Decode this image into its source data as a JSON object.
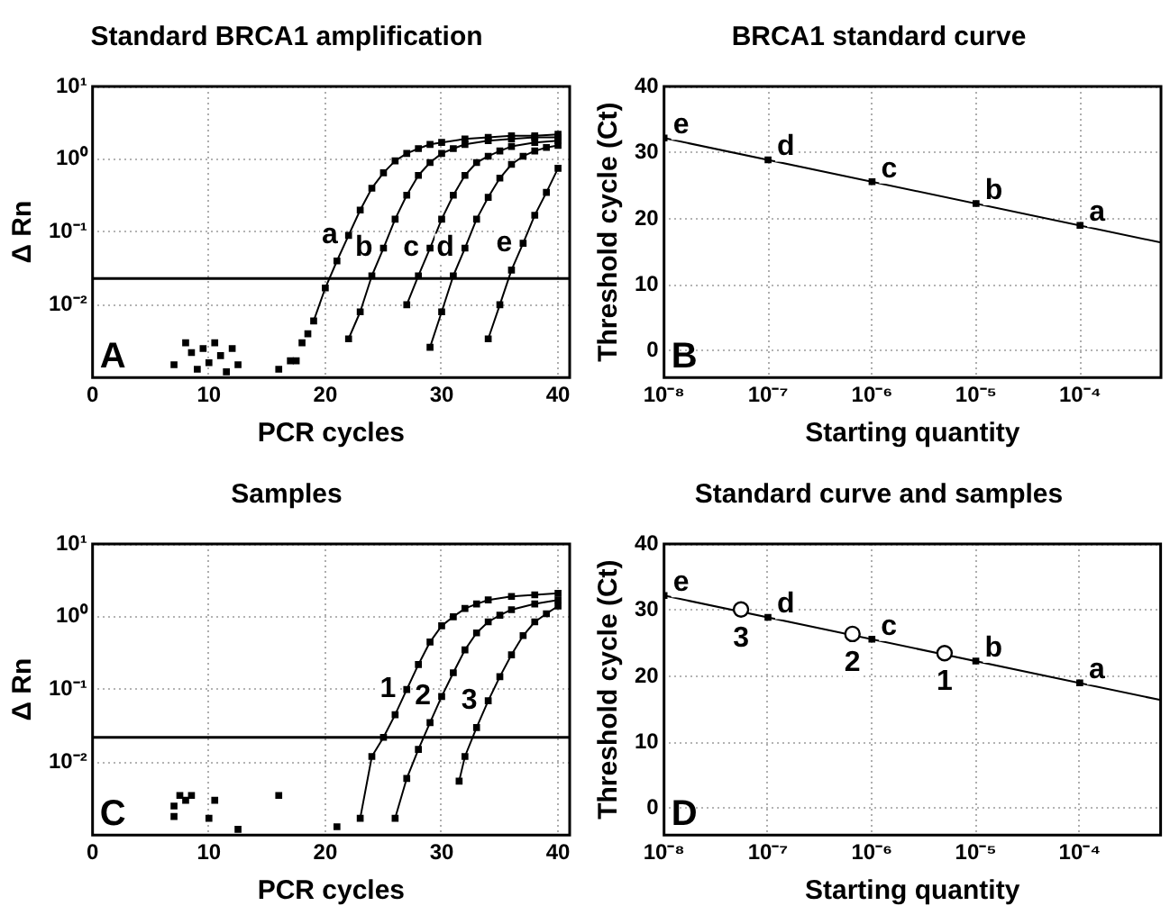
{
  "chart_data": [
    {
      "type": "line",
      "title": "Standard BRCA1 amplification",
      "xlabel": "PCR cycles",
      "ylabel": "Δ Rn",
      "log": "y",
      "grid": true,
      "marker": "square",
      "xlim": [
        0,
        41
      ],
      "xticks": [
        0,
        10,
        20,
        30,
        40
      ],
      "ylim": [
        0.001,
        10
      ],
      "yticks": [
        {
          "value": 10,
          "label": "10¹"
        },
        {
          "value": 1,
          "label": "10⁰"
        },
        {
          "value": 0.1,
          "label": "10⁻¹"
        },
        {
          "value": 0.01,
          "label": "10⁻²"
        }
      ],
      "series": [
        {
          "color": "#000000",
          "x": [
            19,
            20,
            21,
            22,
            23,
            24,
            25,
            26,
            27,
            28,
            29,
            30,
            32,
            34,
            36,
            38,
            40
          ],
          "values": [
            0.006,
            0.017,
            0.04,
            0.09,
            0.2,
            0.4,
            0.65,
            0.95,
            1.2,
            1.4,
            1.6,
            1.7,
            1.9,
            2,
            2.1,
            2.1,
            2.2
          ]
        },
        {
          "color": "#000000",
          "x": [
            22,
            23,
            24,
            25,
            26,
            27,
            28,
            29,
            30,
            31,
            32,
            34,
            36,
            38,
            40
          ],
          "values": [
            0.0034,
            0.008,
            0.025,
            0.06,
            0.15,
            0.32,
            0.6,
            0.9,
            1.2,
            1.4,
            1.6,
            1.8,
            1.9,
            2,
            2
          ]
        },
        {
          "color": "#000000",
          "x": [
            27,
            28,
            29,
            30,
            31,
            32,
            33,
            34,
            35,
            36,
            38,
            40
          ],
          "values": [
            0.01,
            0.025,
            0.06,
            0.15,
            0.32,
            0.6,
            0.9,
            1.1,
            1.3,
            1.5,
            1.7,
            1.8
          ]
        },
        {
          "color": "#000000",
          "x": [
            29,
            30,
            31,
            32,
            33,
            34,
            35,
            36,
            37,
            38,
            39,
            40
          ],
          "values": [
            0.0026,
            0.008,
            0.025,
            0.06,
            0.15,
            0.3,
            0.55,
            0.85,
            1.1,
            1.3,
            1.45,
            1.55
          ]
        },
        {
          "color": "#000000",
          "x": [
            34,
            35,
            36,
            37,
            38,
            39,
            40
          ],
          "values": [
            0.0034,
            0.01,
            0.03,
            0.07,
            0.17,
            0.35,
            0.75
          ]
        },
        {
          "type": "scatter",
          "color": "#000000",
          "x": [
            7,
            8,
            8.5,
            9,
            9.5,
            10,
            10.5,
            11,
            11.5,
            12,
            12.5,
            16,
            17,
            17.5,
            18,
            18.5
          ],
          "values": [
            0.0015,
            0.003,
            0.0022,
            0.0013,
            0.0025,
            0.0016,
            0.003,
            0.002,
            0.0012,
            0.0025,
            0.0015,
            0.0013,
            0.0017,
            0.0017,
            0.003,
            0.004
          ]
        }
      ],
      "ref_lines": [
        {
          "axis": "y",
          "value": 0.023,
          "color": "#000000"
        }
      ],
      "annotations": [
        "A",
        {
          "text": "a",
          "x": 22,
          "y": 0.09
        },
        {
          "text": "b",
          "x": 25,
          "y": 0.06
        },
        {
          "text": "c",
          "x": 29,
          "y": 0.06
        },
        {
          "text": "d",
          "x": 32,
          "y": 0.06
        },
        {
          "text": "e",
          "x": 37,
          "y": 0.07
        }
      ]
    },
    {
      "type": "scatter",
      "title": "BRCA1 standard curve",
      "xlabel": "Starting quantity",
      "ylabel": "Threshold cycle (Ct)",
      "log": "x",
      "grid": true,
      "marker": "square",
      "xlim": [
        1e-08,
        0.0006
      ],
      "xticks": [
        {
          "value": 1e-08,
          "label": "10⁻⁸"
        },
        {
          "value": 1e-07,
          "label": "10⁻⁷"
        },
        {
          "value": 1e-06,
          "label": "10⁻⁶"
        },
        {
          "value": 1e-05,
          "label": "10⁻⁵"
        },
        {
          "value": 0.0001,
          "label": "10⁻⁴"
        }
      ],
      "ylim": [
        -4,
        40
      ],
      "yticks": [
        0,
        10,
        20,
        30,
        40
      ],
      "series": [
        {
          "color": "#000000",
          "x": [
            0.0001,
            1e-05,
            1e-06,
            1e-07,
            1e-08
          ],
          "values": [
            19,
            22.3,
            25.6,
            28.9,
            32.2
          ]
        },
        {
          "type": "line",
          "marker": "none",
          "color": "#000000",
          "x": [
            1e-08,
            0.0006
          ],
          "values": [
            32.2,
            16.4
          ]
        }
      ],
      "annotations": [
        "B",
        {
          "text": "a",
          "x": 0.0001,
          "y": 19
        },
        {
          "text": "b",
          "x": 1e-05,
          "y": 22.3
        },
        {
          "text": "c",
          "x": 1e-06,
          "y": 25.6
        },
        {
          "text": "d",
          "x": 1e-07,
          "y": 28.9
        },
        {
          "text": "e",
          "x": 1e-08,
          "y": 32.2
        }
      ]
    },
    {
      "type": "line",
      "title": "Samples",
      "xlabel": "PCR cycles",
      "ylabel": "Δ Rn",
      "log": "y",
      "grid": true,
      "marker": "square",
      "xlim": [
        0,
        41
      ],
      "xticks": [
        0,
        10,
        20,
        30,
        40
      ],
      "ylim": [
        0.001,
        10
      ],
      "yticks": [
        {
          "value": 10,
          "label": "10¹"
        },
        {
          "value": 1,
          "label": "10⁰"
        },
        {
          "value": 0.1,
          "label": "10⁻¹"
        },
        {
          "value": 0.01,
          "label": "10⁻²"
        }
      ],
      "series": [
        {
          "color": "#000000",
          "x": [
            23,
            24,
            25,
            26,
            27,
            28,
            29,
            30,
            31,
            32,
            33,
            34,
            36,
            38,
            40
          ],
          "values": [
            0.0017,
            0.012,
            0.022,
            0.045,
            0.1,
            0.22,
            0.45,
            0.75,
            1,
            1.3,
            1.5,
            1.7,
            1.9,
            2,
            2.1
          ]
        },
        {
          "color": "#000000",
          "x": [
            26,
            27,
            28,
            29,
            30,
            31,
            32,
            33,
            34,
            35,
            36,
            38,
            40
          ],
          "values": [
            0.0017,
            0.006,
            0.015,
            0.035,
            0.08,
            0.17,
            0.35,
            0.6,
            0.85,
            1.05,
            1.25,
            1.5,
            1.7
          ]
        },
        {
          "color": "#000000",
          "x": [
            31.5,
            32,
            33,
            34,
            35,
            36,
            37,
            38,
            39,
            40
          ],
          "values": [
            0.0055,
            0.012,
            0.03,
            0.07,
            0.15,
            0.3,
            0.55,
            0.85,
            1.1,
            1.4
          ]
        },
        {
          "type": "scatter",
          "color": "#000000",
          "x": [
            7,
            7,
            7.5,
            8,
            8.5,
            10,
            10.5,
            12.5,
            16,
            21
          ],
          "values": [
            0.0018,
            0.0025,
            0.0035,
            0.003,
            0.0035,
            0.0017,
            0.003,
            0.0012,
            0.0035,
            0.0013
          ]
        }
      ],
      "ref_lines": [
        {
          "axis": "y",
          "value": 0.022,
          "color": "#000000"
        }
      ],
      "annotations": [
        "C",
        {
          "text": "1",
          "x": 27,
          "y": 0.1
        },
        {
          "text": "2",
          "x": 30,
          "y": 0.08
        },
        {
          "text": "3",
          "x": 34,
          "y": 0.07
        }
      ]
    },
    {
      "type": "scatter",
      "title": "Standard curve and samples",
      "xlabel": "Starting quantity",
      "ylabel": "Threshold cycle (Ct)",
      "log": "x",
      "grid": true,
      "marker": "square",
      "xlim": [
        1e-08,
        0.0006
      ],
      "xticks": [
        {
          "value": 1e-08,
          "label": "10⁻⁸"
        },
        {
          "value": 1e-07,
          "label": "10⁻⁷"
        },
        {
          "value": 1e-06,
          "label": "10⁻⁶"
        },
        {
          "value": 1e-05,
          "label": "10⁻⁵"
        },
        {
          "value": 0.0001,
          "label": "10⁻⁴"
        }
      ],
      "ylim": [
        -4,
        40
      ],
      "yticks": [
        0,
        10,
        20,
        30,
        40
      ],
      "series": [
        {
          "type": "line",
          "marker": "none",
          "color": "#000000",
          "x": [
            1e-08,
            0.0006
          ],
          "values": [
            32.2,
            16.4
          ]
        },
        {
          "color": "#000000",
          "x": [
            0.0001,
            1e-05,
            1e-06,
            1e-07,
            1e-08
          ],
          "values": [
            19,
            22.3,
            25.6,
            28.9,
            32.2
          ]
        },
        {
          "marker": "circle",
          "color": "#000000",
          "x": [
            5e-06,
            6.5e-07,
            5.5e-08
          ],
          "values": [
            23.5,
            26.4,
            30.1
          ]
        }
      ],
      "annotations": [
        "D",
        {
          "text": "a",
          "x": 0.0001,
          "y": 19
        },
        {
          "text": "b",
          "x": 1e-05,
          "y": 22.3
        },
        {
          "text": "c",
          "x": 1e-06,
          "y": 25.6
        },
        {
          "text": "d",
          "x": 1e-07,
          "y": 28.9
        },
        {
          "text": "e",
          "x": 1e-08,
          "y": 32.2
        },
        {
          "text": "3",
          "x": 5.5e-08,
          "y": 30.1
        },
        {
          "text": "2",
          "x": 6.5e-07,
          "y": 26.4
        },
        {
          "text": "1",
          "x": 5e-06,
          "y": 23.5
        }
      ]
    }
  ]
}
